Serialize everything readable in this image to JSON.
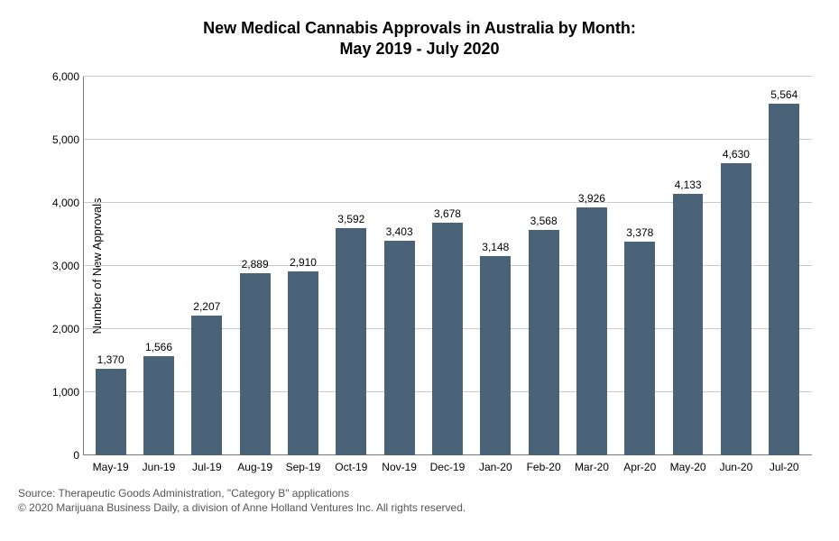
{
  "chart": {
    "type": "bar",
    "title_line1": "New Medical Cannabis Approvals in Australia by Month:",
    "title_line2": "May 2019 - July 2020",
    "title_fontsize": 18,
    "y_axis_label": "Number of New Approvals",
    "axis_label_fontsize": 13,
    "categories_idx": [
      "0",
      "1",
      "2",
      "3",
      "4",
      "5",
      "6",
      "7",
      "8",
      "9",
      "10",
      "11",
      "12",
      "13",
      "14"
    ],
    "categories": [
      "May-19",
      "Jun-19",
      "Jul-19",
      "Aug-19",
      "Sep-19",
      "Oct-19",
      "Nov-19",
      "Dec-19",
      "Jan-20",
      "Feb-20",
      "Mar-20",
      "Apr-20",
      "May-20",
      "Jun-20",
      "Jul-20"
    ],
    "values": [
      1370,
      1566,
      2207,
      2889,
      2910,
      3592,
      3403,
      3678,
      3148,
      3568,
      3926,
      3378,
      4133,
      4630,
      5564
    ],
    "value_labels": [
      "1,370",
      "1,566",
      "2,207",
      "2,889",
      "2,910",
      "3,592",
      "3,403",
      "3,678",
      "3,148",
      "3,568",
      "3,926",
      "3,378",
      "4,133",
      "4,630",
      "5,564"
    ],
    "ylim": [
      0,
      6000
    ],
    "ytick_step": 1000,
    "yticks_idx": [
      "0",
      "1",
      "2",
      "3",
      "4",
      "5",
      "6"
    ],
    "yticks_raw": [
      0,
      1000,
      2000,
      3000,
      4000,
      5000,
      6000
    ],
    "yticks": [
      "0",
      "1,000",
      "2,000",
      "3,000",
      "4,000",
      "5,000",
      "6,000"
    ],
    "bar_color": "#4a6379",
    "background_color": "#ffffff",
    "grid_color": "#c8c8c8",
    "axis_color": "#7a7a7a",
    "value_label_fontsize": 12,
    "tick_label_fontsize": 12,
    "bar_width_ratio": 0.78
  },
  "footer": {
    "source": "Source: Therapeutic Goods Administration, \"Category B\" applications",
    "copyright": "© 2020 Marijuana Business Daily, a division of Anne Holland Ventures Inc. All rights reserved.",
    "fontsize": 12,
    "color": "#555555"
  }
}
